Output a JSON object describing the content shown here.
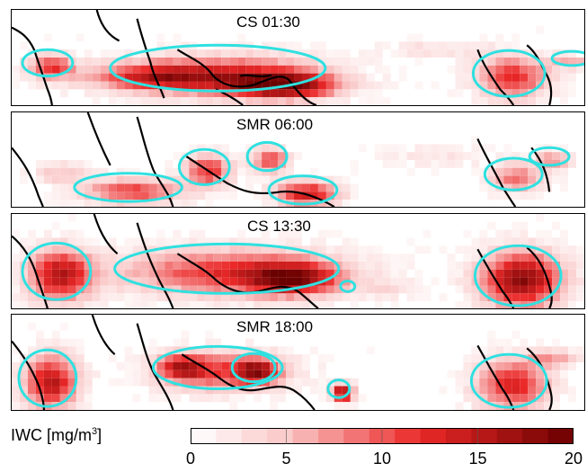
{
  "chart_data": {
    "type": "heatmap",
    "panels": [
      {
        "label": "CS 01:30"
      },
      {
        "label": "SMR 06:00"
      },
      {
        "label": "CS 13:30"
      },
      {
        "label": "SMR 18:00"
      }
    ],
    "colorbar": {
      "label": "IWC [mg/m",
      "label_superscript": "3",
      "label_suffix": "]",
      "range": [
        0,
        20
      ],
      "ticks": [
        "0",
        "5",
        "10",
        "15",
        "20"
      ],
      "tick_values": [
        0,
        5,
        10,
        15,
        20
      ],
      "steps": 15
    },
    "colors": {
      "low": "#ffffff",
      "high": "#6b0000",
      "contour": "#2fe0e0",
      "coast": "#000000"
    }
  }
}
